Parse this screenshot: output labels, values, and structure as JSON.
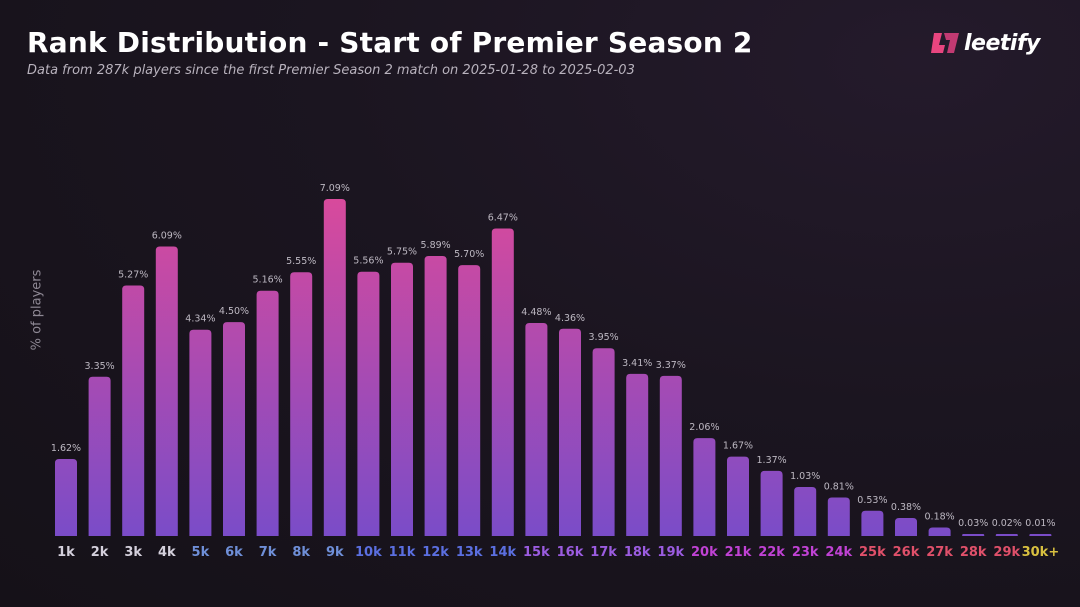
{
  "header": {
    "title": "Rank Distribution - Start of Premier Season 2",
    "subtitle": "Data from 287k players since the first Premier Season 2 match on 2025-01-28 to 2025-02-03"
  },
  "logo": {
    "text": "leetify",
    "icon": "leetify-logo-icon",
    "color": "#e8457f"
  },
  "chart_data": {
    "type": "bar",
    "title": "Rank Distribution - Start of Premier Season 2",
    "xlabel": "",
    "ylabel": "% of players",
    "ylim": [
      0,
      7.5
    ],
    "grid": false,
    "legend": "none",
    "categories": [
      "1k",
      "2k",
      "3k",
      "4k",
      "5k",
      "6k",
      "7k",
      "8k",
      "9k",
      "10k",
      "11k",
      "12k",
      "13k",
      "14k",
      "15k",
      "16k",
      "17k",
      "18k",
      "19k",
      "20k",
      "21k",
      "22k",
      "23k",
      "24k",
      "25k",
      "26k",
      "27k",
      "28k",
      "29k",
      "30k+"
    ],
    "values": [
      1.62,
      3.35,
      5.27,
      6.09,
      4.34,
      4.5,
      5.16,
      5.55,
      7.09,
      5.56,
      5.75,
      5.89,
      5.7,
      6.47,
      4.48,
      4.36,
      3.95,
      3.41,
      3.37,
      2.06,
      1.67,
      1.37,
      1.03,
      0.81,
      0.53,
      0.38,
      0.18,
      0.03,
      0.02,
      0.01
    ],
    "value_labels": [
      "1.62%",
      "3.35%",
      "5.27%",
      "6.09%",
      "4.34%",
      "4.50%",
      "5.16%",
      "5.55%",
      "7.09%",
      "5.56%",
      "5.75%",
      "5.89%",
      "5.70%",
      "6.47%",
      "4.48%",
      "4.36%",
      "3.95%",
      "3.41%",
      "3.37%",
      "2.06%",
      "1.67%",
      "1.37%",
      "1.03%",
      "0.81%",
      "0.53%",
      "0.38%",
      "0.18%",
      "0.03%",
      "0.02%",
      "0.01%"
    ],
    "tick_colors": [
      "#d4d0dc",
      "#d4d0dc",
      "#d4d0dc",
      "#d4d0dc",
      "#6f8fd8",
      "#6f8fd8",
      "#6f8fd8",
      "#6f8fd8",
      "#6f8fd8",
      "#5b6fe0",
      "#5b6fe0",
      "#5b6fe0",
      "#5b6fe0",
      "#5b6fe0",
      "#9b5ce0",
      "#9b5ce0",
      "#9b5ce0",
      "#9b5ce0",
      "#9b5ce0",
      "#c042d4",
      "#c042d4",
      "#c042d4",
      "#c042d4",
      "#c042d4",
      "#e0506a",
      "#e0506a",
      "#e0506a",
      "#e0506a",
      "#e0506a",
      "#d8c040"
    ],
    "bar_gradient": {
      "top": "#d84a9c",
      "bottom": "#7a4cc8"
    }
  }
}
